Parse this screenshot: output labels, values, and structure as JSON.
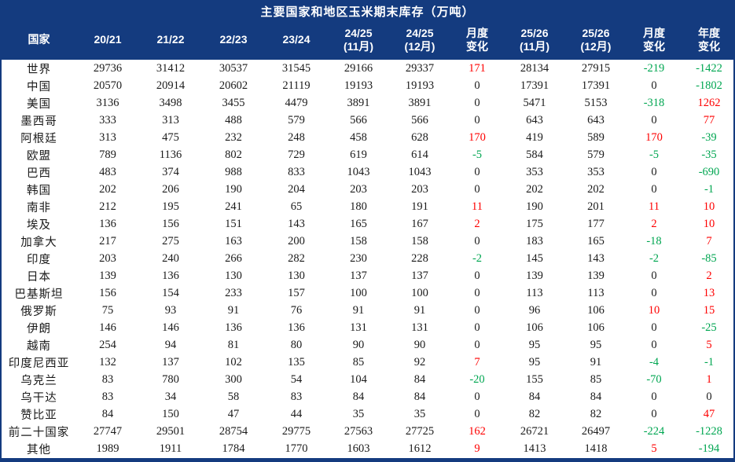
{
  "colors": {
    "header_bg": "#143b7f",
    "header_text": "#ffffff",
    "body_text": "#1a1a1a",
    "positive_change": "#fe0000",
    "negative_change": "#00a651"
  },
  "chart_data": {
    "type": "table",
    "title": "主要国家和地区玉米期末库存（万吨）",
    "columns": [
      {
        "label": "国家",
        "sub": ""
      },
      {
        "label": "20/21",
        "sub": ""
      },
      {
        "label": "21/22",
        "sub": ""
      },
      {
        "label": "22/23",
        "sub": ""
      },
      {
        "label": "23/24",
        "sub": ""
      },
      {
        "label": "24/25",
        "sub": "(11月)"
      },
      {
        "label": "24/25",
        "sub": "(12月)"
      },
      {
        "label": "月度",
        "sub": "变化"
      },
      {
        "label": "25/26",
        "sub": "(11月)"
      },
      {
        "label": "25/26",
        "sub": "(12月)"
      },
      {
        "label": "月度",
        "sub": "变化"
      },
      {
        "label": "年度",
        "sub": "变化"
      }
    ],
    "change_column_indexes": [
      6,
      9,
      10
    ],
    "rows": [
      {
        "name": "世界",
        "values": [
          29736,
          31412,
          30537,
          31545,
          29166,
          29337,
          171,
          28134,
          27915,
          -219,
          -1422
        ]
      },
      {
        "name": "中国",
        "values": [
          20570,
          20914,
          20602,
          21119,
          19193,
          19193,
          0,
          17391,
          17391,
          0,
          -1802
        ]
      },
      {
        "name": "美国",
        "values": [
          3136,
          3498,
          3455,
          4479,
          3891,
          3891,
          0,
          5471,
          5153,
          -318,
          1262
        ]
      },
      {
        "name": "墨西哥",
        "values": [
          333,
          313,
          488,
          579,
          566,
          566,
          0,
          643,
          643,
          0,
          77
        ]
      },
      {
        "name": "阿根廷",
        "values": [
          313,
          475,
          232,
          248,
          458,
          628,
          170,
          419,
          589,
          170,
          -39
        ]
      },
      {
        "name": "欧盟",
        "values": [
          789,
          1136,
          802,
          729,
          619,
          614,
          -5,
          584,
          579,
          -5,
          -35
        ]
      },
      {
        "name": "巴西",
        "values": [
          483,
          374,
          988,
          833,
          1043,
          1043,
          0,
          353,
          353,
          0,
          -690
        ]
      },
      {
        "name": "韩国",
        "values": [
          202,
          206,
          190,
          204,
          203,
          203,
          0,
          202,
          202,
          0,
          -1
        ]
      },
      {
        "name": "南非",
        "values": [
          212,
          195,
          241,
          65,
          180,
          191,
          11,
          190,
          201,
          11,
          10
        ]
      },
      {
        "name": "埃及",
        "values": [
          136,
          156,
          151,
          143,
          165,
          167,
          2,
          175,
          177,
          2,
          10
        ]
      },
      {
        "name": "加拿大",
        "values": [
          217,
          275,
          163,
          200,
          158,
          158,
          0,
          183,
          165,
          -18,
          7
        ]
      },
      {
        "name": "印度",
        "values": [
          203,
          240,
          266,
          282,
          230,
          228,
          -2,
          145,
          143,
          -2,
          -85
        ]
      },
      {
        "name": "日本",
        "values": [
          139,
          136,
          130,
          130,
          137,
          137,
          0,
          139,
          139,
          0,
          2
        ]
      },
      {
        "name": "巴基斯坦",
        "values": [
          156,
          154,
          233,
          157,
          100,
          100,
          0,
          113,
          113,
          0,
          13
        ]
      },
      {
        "name": "俄罗斯",
        "values": [
          75,
          93,
          91,
          76,
          91,
          91,
          0,
          96,
          106,
          10,
          15
        ]
      },
      {
        "name": "伊朗",
        "values": [
          146,
          146,
          136,
          136,
          131,
          131,
          0,
          106,
          106,
          0,
          -25
        ]
      },
      {
        "name": "越南",
        "values": [
          254,
          94,
          81,
          80,
          90,
          90,
          0,
          95,
          95,
          0,
          5
        ]
      },
      {
        "name": "印度尼西亚",
        "values": [
          132,
          137,
          102,
          135,
          85,
          92,
          7,
          95,
          91,
          -4,
          -1
        ]
      },
      {
        "name": "乌克兰",
        "values": [
          83,
          780,
          300,
          54,
          104,
          84,
          -20,
          155,
          85,
          -70,
          1
        ]
      },
      {
        "name": "乌干达",
        "values": [
          83,
          34,
          58,
          83,
          84,
          84,
          0,
          84,
          84,
          0,
          0
        ]
      },
      {
        "name": "赞比亚",
        "values": [
          84,
          150,
          47,
          44,
          35,
          35,
          0,
          82,
          82,
          0,
          47
        ]
      },
      {
        "name": "前二十国家",
        "values": [
          27747,
          29501,
          28754,
          29775,
          27563,
          27725,
          162,
          26721,
          26497,
          -224,
          -1228
        ]
      },
      {
        "name": "其他",
        "values": [
          1989,
          1911,
          1784,
          1770,
          1603,
          1612,
          9,
          1413,
          1418,
          5,
          -194
        ]
      }
    ]
  }
}
